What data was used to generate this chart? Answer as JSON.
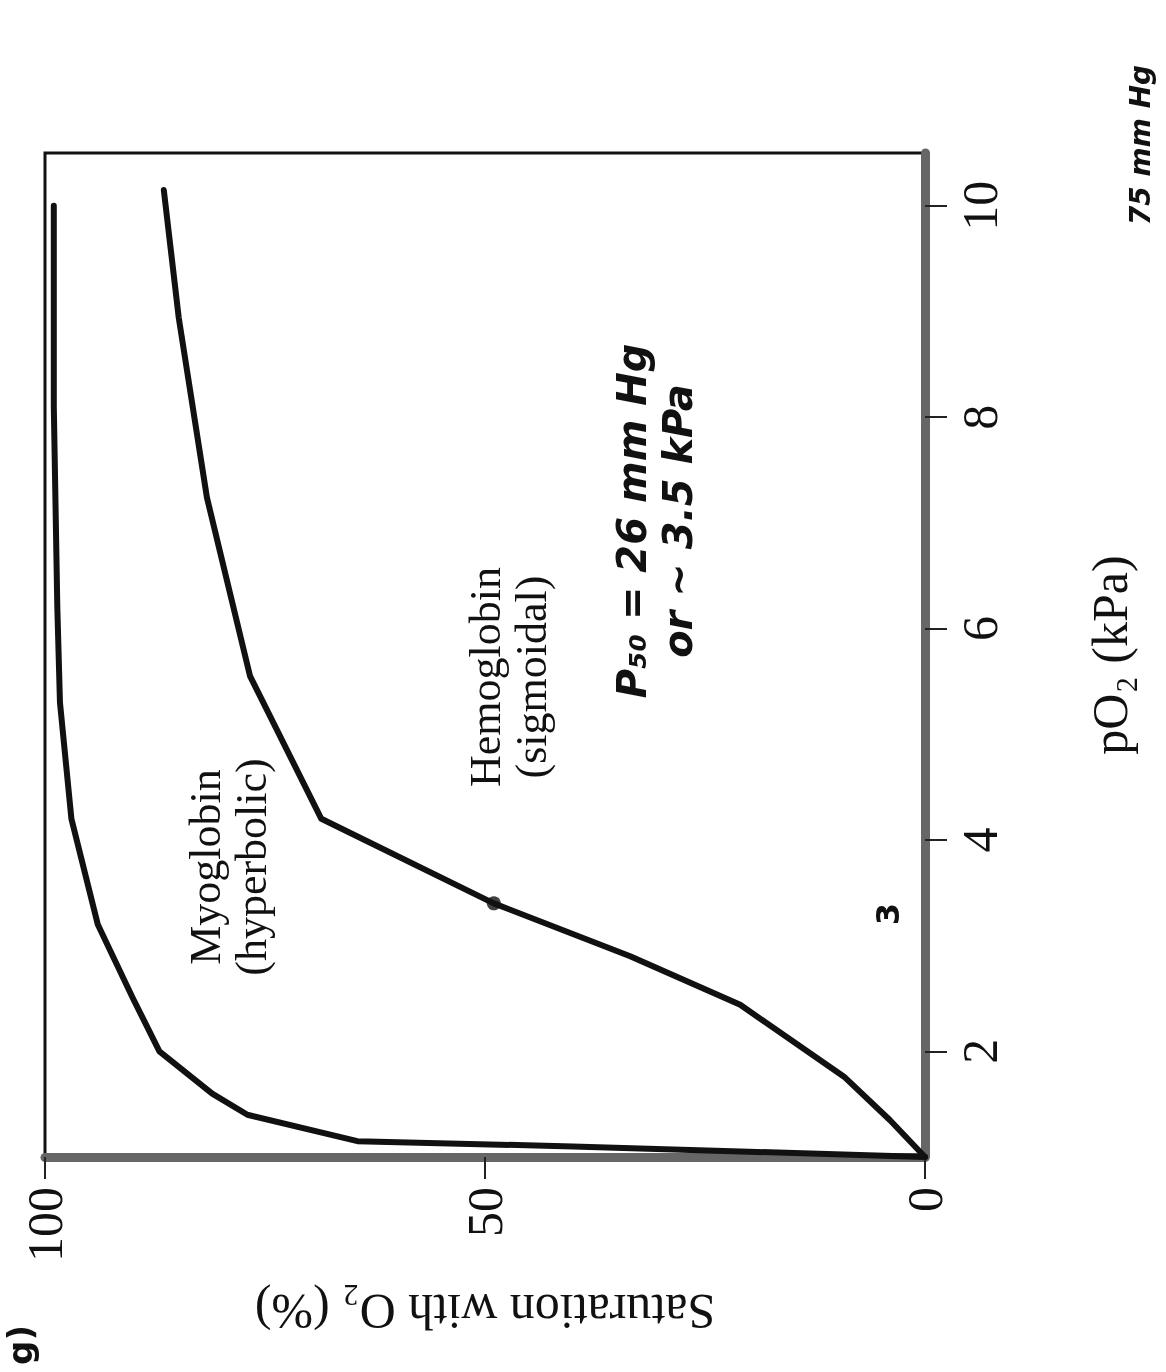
{
  "chart_data": {
    "type": "line",
    "xlabel": "Saturation with O₂ (%)",
    "ylabel": "pO₂ (kPa)",
    "xlim": [
      100,
      0
    ],
    "xticks": [
      100,
      50,
      0
    ],
    "ylim": [
      1,
      10.5
    ],
    "yticks": [
      2,
      4,
      6,
      8,
      10
    ],
    "grid": false,
    "legend": false,
    "marker": "none",
    "line_style": "solid",
    "series": [
      {
        "name": "Myoglobin\n(hyperbolic)",
        "color": "#111111",
        "x": [
          0,
          20,
          40,
          64.5,
          77,
          81,
          87,
          90,
          94,
          97,
          98.3,
          98.6,
          99,
          99
        ],
        "values": [
          1,
          1.05,
          1.1,
          1.15,
          1.4,
          1.6,
          2.0,
          2.5,
          3.2,
          4.2,
          5.3,
          6.2,
          8.1,
          10.0
        ]
      },
      {
        "name": "Hemoglobin\n(sigmoidal)",
        "color": "#111111",
        "x": [
          0,
          4,
          9.2,
          21,
          33.5,
          49,
          68.6,
          76.7,
          81.6,
          84.8,
          86.5
        ],
        "values": [
          1,
          1.35,
          1.76,
          2.44,
          2.9,
          3.4,
          4.2,
          5.55,
          7.24,
          8.94,
          10.15
        ]
      },
      {
        "type": "scatter",
        "color": "#111111",
        "marker": "circle",
        "x": [
          49
        ],
        "values": [
          3.4
        ]
      }
    ],
    "annotations": [
      "g)",
      "3",
      "P₅₀ = 26 mm Hg\nor ~ 3.5 kPa",
      "75 mm Hg"
    ]
  }
}
